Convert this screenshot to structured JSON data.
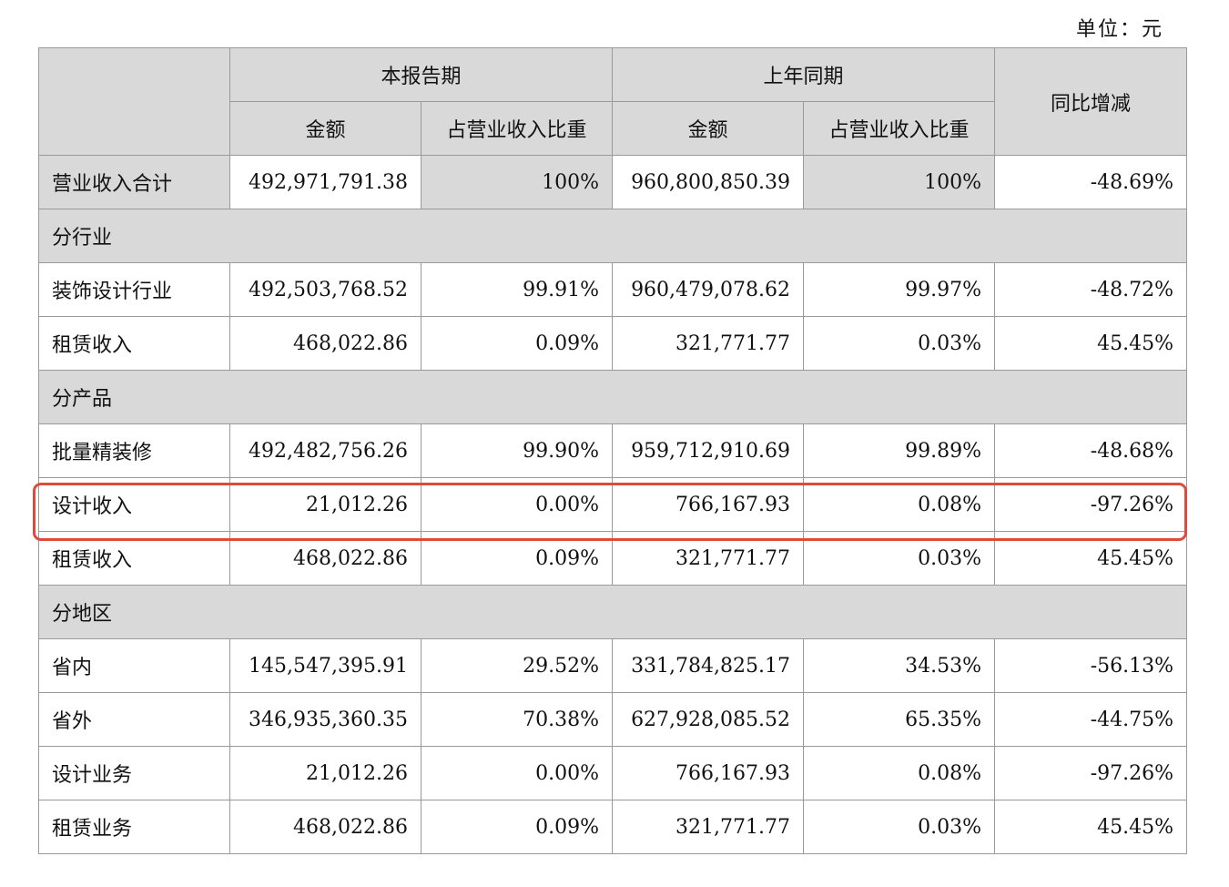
{
  "unit": "单位：元",
  "header": {
    "current_period": "本报告期",
    "prior_period": "上年同期",
    "yoy_change": "同比增减",
    "amount": "金额",
    "share": "占营业收入比重"
  },
  "total": {
    "label": "营业收入合计",
    "cur_amount": "492,971,791.38",
    "cur_share": "100%",
    "prev_amount": "960,800,850.39",
    "prev_share": "100%",
    "yoy": "-48.69%"
  },
  "sections": [
    {
      "title": "分行业",
      "rows": [
        {
          "label": "装饰设计行业",
          "cur_amount": "492,503,768.52",
          "cur_share": "99.91%",
          "prev_amount": "960,479,078.62",
          "prev_share": "99.97%",
          "yoy": "-48.72%"
        },
        {
          "label": "租赁收入",
          "cur_amount": "468,022.86",
          "cur_share": "0.09%",
          "prev_amount": "321,771.77",
          "prev_share": "0.03%",
          "yoy": "45.45%"
        }
      ]
    },
    {
      "title": "分产品",
      "rows": [
        {
          "label": "批量精装修",
          "cur_amount": "492,482,756.26",
          "cur_share": "99.90%",
          "prev_amount": "959,712,910.69",
          "prev_share": "99.89%",
          "yoy": "-48.68%"
        },
        {
          "label": "设计收入",
          "cur_amount": "21,012.26",
          "cur_share": "0.00%",
          "prev_amount": "766,167.93",
          "prev_share": "0.08%",
          "yoy": "-97.26%"
        },
        {
          "label": "租赁收入",
          "cur_amount": "468,022.86",
          "cur_share": "0.09%",
          "prev_amount": "321,771.77",
          "prev_share": "0.03%",
          "yoy": "45.45%"
        }
      ]
    },
    {
      "title": "分地区",
      "rows": [
        {
          "label": "省内",
          "cur_amount": "145,547,395.91",
          "cur_share": "29.52%",
          "prev_amount": "331,784,825.17",
          "prev_share": "34.53%",
          "yoy": "-56.13%"
        },
        {
          "label": "省外",
          "cur_amount": "346,935,360.35",
          "cur_share": "70.38%",
          "prev_amount": "627,928,085.52",
          "prev_share": "65.35%",
          "yoy": "-44.75%"
        },
        {
          "label": "设计业务",
          "cur_amount": "21,012.26",
          "cur_share": "0.00%",
          "prev_amount": "766,167.93",
          "prev_share": "0.08%",
          "yoy": "-97.26%"
        },
        {
          "label": "租赁业务",
          "cur_amount": "468,022.86",
          "cur_share": "0.09%",
          "prev_amount": "321,771.77",
          "prev_share": "0.03%",
          "yoy": "45.45%"
        }
      ]
    }
  ],
  "colors": {
    "header_fill": "#d9d9d9",
    "grid_line": "#9a9a9a",
    "highlight_outline": "#e04a3a"
  }
}
